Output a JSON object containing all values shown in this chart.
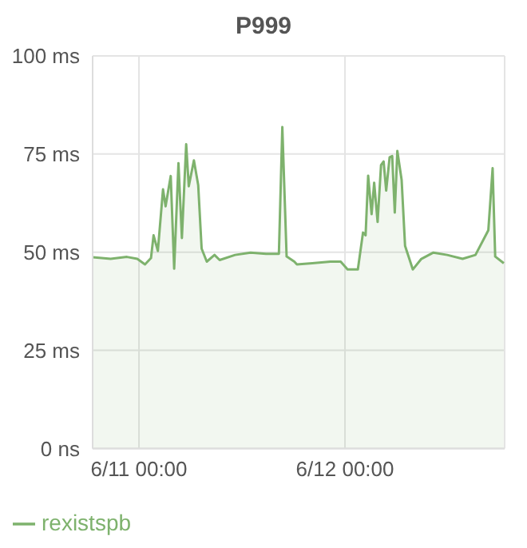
{
  "chart_data": {
    "type": "area",
    "title": "P999",
    "xlim": [
      "--06-10T18:36",
      "--06-12T18:36"
    ],
    "xticks": [
      {
        "value": "--06-11T00:00",
        "label": "6/11 00:00"
      },
      {
        "value": "--06-12T00:00",
        "label": "6/12 00:00"
      }
    ],
    "ylim": [
      0,
      100
    ],
    "yticks": [
      {
        "value": 0,
        "label": "0 ns"
      },
      {
        "value": 25,
        "label": "25 ms"
      },
      {
        "value": 50,
        "label": "50 ms"
      },
      {
        "value": 75,
        "label": "75 ms"
      },
      {
        "value": 100,
        "label": "100 ms"
      }
    ],
    "grid": true,
    "legend": "bottom left",
    "x": [
      "--06-10T18:36",
      "--06-10T20:42",
      "--06-10T22:36",
      "--06-10T23:48",
      "--06-11T00:42",
      "--06-11T01:24",
      "--06-11T01:42",
      "--06-11T02:12",
      "--06-11T02:48",
      "--06-11T03:06",
      "--06-11T03:42",
      "--06-11T04:06",
      "--06-11T04:36",
      "--06-11T05:00",
      "--06-11T05:30",
      "--06-11T05:48",
      "--06-11T06:24",
      "--06-11T06:54",
      "--06-11T07:18",
      "--06-11T07:54",
      "--06-11T08:48",
      "--06-11T09:24",
      "--06-11T11:12",
      "--06-11T13:00",
      "--06-11T14:48",
      "--06-11T16:18",
      "--06-11T16:42",
      "--06-11T17:12",
      "--06-11T18:06",
      "--06-11T18:24",
      "--06-11T20:12",
      "--06-11T22:18",
      "--06-11T23:30",
      "--06-12T00:18",
      "--06-12T01:30",
      "--06-12T02:06",
      "--06-12T02:24",
      "--06-12T02:42",
      "--06-12T03:06",
      "--06-12T03:24",
      "--06-12T03:48",
      "--06-12T04:12",
      "--06-12T04:30",
      "--06-12T04:48",
      "--06-12T05:12",
      "--06-12T05:30",
      "--06-12T05:48",
      "--06-12T06:06",
      "--06-12T06:36",
      "--06-12T07:00",
      "--06-12T07:54",
      "--06-12T08:54",
      "--06-12T10:18",
      "--06-12T11:54",
      "--06-12T13:42",
      "--06-12T15:12",
      "--06-12T16:42",
      "--06-12T17:12",
      "--06-12T17:30",
      "--06-12T18:30"
    ],
    "series": [
      {
        "name": "rexistspb",
        "color": "#7eb26d",
        "values": [
          48.7,
          48.3,
          48.8,
          48.3,
          46.9,
          48.5,
          54.3,
          50.3,
          66,
          61.7,
          69.4,
          45.8,
          72.7,
          53.6,
          77.5,
          66.8,
          73.4,
          67.1,
          50.9,
          47.6,
          49.3,
          48,
          49.3,
          49.9,
          49.6,
          49.6,
          81.9,
          48.9,
          47.6,
          46.9,
          47.2,
          47.6,
          47.6,
          45.6,
          45.6,
          55,
          54.3,
          69.5,
          59.7,
          67.7,
          57.7,
          72.2,
          73.1,
          65.7,
          74.2,
          74.5,
          60.1,
          75.8,
          68.4,
          51.6,
          45.6,
          48.3,
          49.9,
          49.3,
          48.3,
          49.3,
          55.6,
          71.4,
          48.9,
          47.2
        ]
      }
    ]
  }
}
